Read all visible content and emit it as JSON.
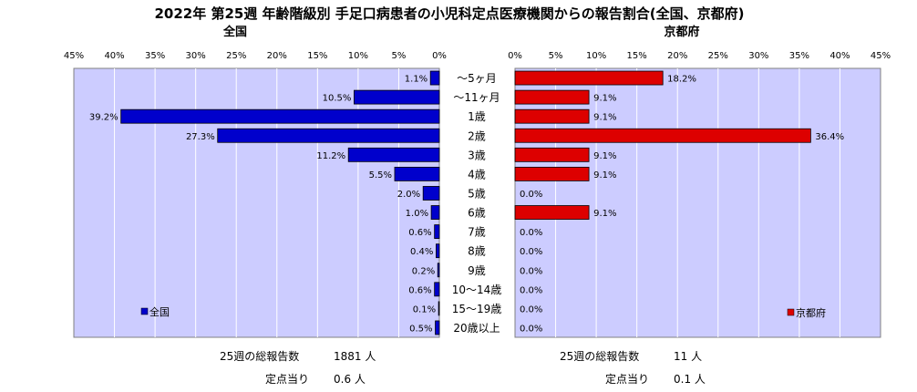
{
  "title": "2022年 第25週  年齢階級別 手足口病患者の小児科定点医療機関からの報告割合(全国、京都府)",
  "colors": {
    "national": "#0000CC",
    "kyoto": "#DD0000",
    "plot_bg": "#CCCCFF",
    "grid": "#ffffff"
  },
  "chart_data": [
    {
      "type": "bar",
      "orientation": "horizontal",
      "direction": "right-to-left",
      "title": "全国",
      "xlim": [
        0,
        45
      ],
      "xticks": [
        "45%",
        "40%",
        "35%",
        "30%",
        "25%",
        "20%",
        "15%",
        "10%",
        "5%",
        "0%"
      ],
      "categories": [
        "～5ヶ月",
        "～11ヶ月",
        "1歳",
        "2歳",
        "3歳",
        "4歳",
        "5歳",
        "6歳",
        "7歳",
        "8歳",
        "9歳",
        "10～14歳",
        "15～19歳",
        "20歳以上"
      ],
      "series": [
        {
          "name": "全国",
          "values": [
            1.1,
            10.5,
            39.2,
            27.3,
            11.2,
            5.5,
            2.0,
            1.0,
            0.6,
            0.4,
            0.2,
            0.6,
            0.1,
            0.5
          ],
          "labels": [
            "1.1%",
            "10.5%",
            "39.2%",
            "27.3%",
            "11.2%",
            "5.5%",
            "2.0%",
            "1.0%",
            "0.6%",
            "0.4%",
            "0.2%",
            "0.6%",
            "0.1%",
            "0.5%"
          ]
        }
      ],
      "legend_position": "bottom-left",
      "grid": true
    },
    {
      "type": "bar",
      "orientation": "horizontal",
      "direction": "left-to-right",
      "title": "京都府",
      "xlim": [
        0,
        45
      ],
      "xticks": [
        "0%",
        "5%",
        "10%",
        "15%",
        "20%",
        "25%",
        "30%",
        "35%",
        "40%",
        "45%"
      ],
      "categories": [
        "～5ヶ月",
        "～11ヶ月",
        "1歳",
        "2歳",
        "3歳",
        "4歳",
        "5歳",
        "6歳",
        "7歳",
        "8歳",
        "9歳",
        "10～14歳",
        "15～19歳",
        "20歳以上"
      ],
      "series": [
        {
          "name": "京都府",
          "values": [
            18.2,
            9.1,
            9.1,
            36.4,
            9.1,
            9.1,
            0.0,
            9.1,
            0.0,
            0.0,
            0.0,
            0.0,
            0.0,
            0.0
          ],
          "labels": [
            "18.2%",
            "9.1%",
            "9.1%",
            "36.4%",
            "9.1%",
            "9.1%",
            "0.0%",
            "9.1%",
            "0.0%",
            "0.0%",
            "0.0%",
            "0.0%",
            "0.0%",
            "0.0%"
          ]
        }
      ],
      "legend_position": "bottom-right",
      "grid": true
    }
  ],
  "summary": {
    "national": {
      "total_label": "25週の総報告数",
      "total_value": "1881 人",
      "per_label": "定点当り",
      "per_value": "0.6 人"
    },
    "kyoto": {
      "total_label": "25週の総報告数",
      "total_value": "11 人",
      "per_label": "定点当り",
      "per_value": "0.1 人"
    }
  }
}
